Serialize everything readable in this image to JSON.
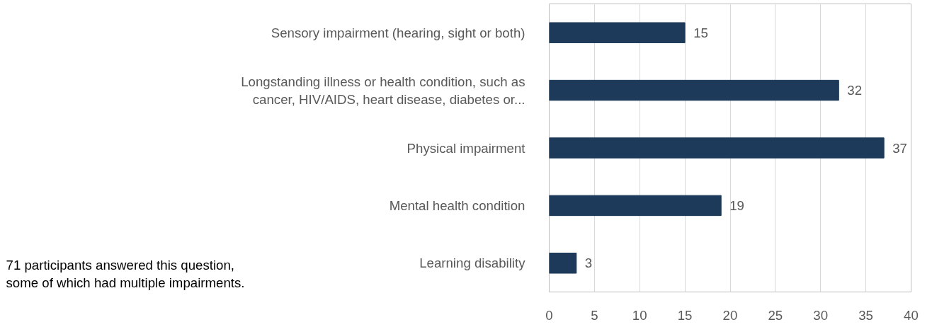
{
  "chart_data": {
    "type": "bar",
    "orientation": "horizontal",
    "categories": [
      "Sensory impairment (hearing, sight or both)",
      "Longstanding illness or health condition, such as\ncancer, HIV/AIDS, heart disease, diabetes or...",
      "Physical impairment",
      "Mental health condition",
      "Learning disability"
    ],
    "values": [
      15,
      32,
      37,
      19,
      3
    ],
    "color": "#1d3a5a",
    "xlim": [
      0,
      40
    ],
    "xticks": [
      0,
      5,
      10,
      15,
      20,
      25,
      30,
      35,
      40
    ],
    "grid": "x",
    "data_labels": true,
    "annotations": [
      "71 participants answered this question,\nsome of which had multiple impairments."
    ]
  }
}
